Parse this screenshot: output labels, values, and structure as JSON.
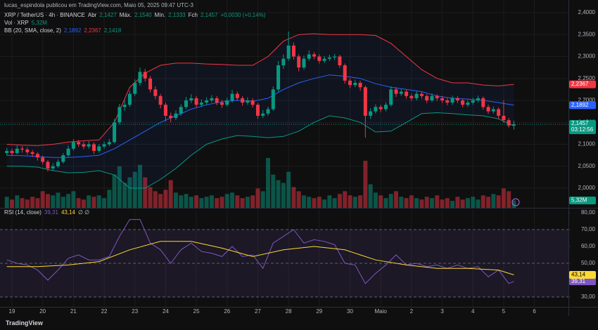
{
  "header": {
    "publisher": "lucas_espindola publicou em TradingView.com, Maio 05, 2025 09:47 UTC-3"
  },
  "footer": {
    "brand": "TradingView"
  },
  "chart_data": [
    {
      "type": "candlestick",
      "title": "XRP / TetherUS · 4h · BINANCE",
      "info": [
        {
          "label": "Abr",
          "value": "2,1427"
        },
        {
          "label": "Máx.",
          "value": "2,1540"
        },
        {
          "label": "Mín.",
          "value": "2,1333"
        },
        {
          "label": "Fch",
          "value": "2,1457"
        }
      ],
      "change": "+0,0030 (+0,14%)",
      "up_color": "#089981",
      "down_color": "#f23645",
      "last_label": "2,1457",
      "countdown": "03:12:56",
      "xlim": [
        -1.335,
        109.65
      ],
      "xticks": [
        {
          "value": 1,
          "label": "19"
        },
        {
          "value": 7,
          "label": "20"
        },
        {
          "value": 13,
          "label": "21"
        },
        {
          "value": 19,
          "label": "22"
        },
        {
          "value": 25,
          "label": "23"
        },
        {
          "value": 31,
          "label": "24"
        },
        {
          "value": 37,
          "label": "25"
        },
        {
          "value": 43,
          "label": "26"
        },
        {
          "value": 49,
          "label": "27"
        },
        {
          "value": 55,
          "label": "28"
        },
        {
          "value": 61,
          "label": "29"
        },
        {
          "value": 67,
          "label": "30"
        },
        {
          "value": 73,
          "label": "Maio"
        },
        {
          "value": 79,
          "label": "2"
        },
        {
          "value": 85,
          "label": "3"
        },
        {
          "value": 91,
          "label": "4"
        },
        {
          "value": 97,
          "label": "5"
        },
        {
          "value": 103,
          "label": "6"
        }
      ],
      "ylim": [
        1.9552,
        2.4288
      ],
      "yticks": [
        {
          "value": 2.0,
          "label": "2,0000"
        },
        {
          "value": 2.05,
          "label": "2,0500"
        },
        {
          "value": 2.1,
          "label": "2,1000"
        },
        {
          "value": 2.15,
          "label": "2,1500"
        },
        {
          "value": 2.2,
          "label": "2,2000"
        },
        {
          "value": 2.25,
          "label": "2,2500"
        },
        {
          "value": 2.3,
          "label": "2,3000"
        },
        {
          "value": 2.35,
          "label": "2,3500"
        },
        {
          "value": 2.4,
          "label": "2,4000"
        }
      ],
      "grid": true,
      "open": [
        2.08,
        2.085,
        2.08,
        2.09,
        2.088,
        2.082,
        2.078,
        2.07,
        2.06,
        2.045,
        2.05,
        2.06,
        2.075,
        2.09,
        2.105,
        2.1,
        2.095,
        2.1,
        2.085,
        2.095,
        2.1,
        2.105,
        2.15,
        2.185,
        2.19,
        2.215,
        2.24,
        2.265,
        2.25,
        2.225,
        2.21,
        2.19,
        2.165,
        2.16,
        2.17,
        2.185,
        2.2,
        2.205,
        2.19,
        2.195,
        2.2,
        2.205,
        2.195,
        2.19,
        2.2,
        2.215,
        2.205,
        2.195,
        2.2,
        2.19,
        2.165,
        2.17,
        2.18,
        2.225,
        2.28,
        2.295,
        2.325,
        2.3,
        2.275,
        2.295,
        2.305,
        2.3,
        2.29,
        2.295,
        2.298,
        2.3,
        2.28,
        2.245,
        2.235,
        2.24,
        2.23,
        2.165,
        2.175,
        2.185,
        2.18,
        2.19,
        2.225,
        2.215,
        2.22,
        2.21,
        2.205,
        2.215,
        2.21,
        2.2,
        2.21,
        2.205,
        2.2,
        2.195,
        2.205,
        2.2,
        2.19,
        2.195,
        2.2,
        2.205,
        2.185,
        2.175,
        2.18,
        2.165,
        2.155,
        2.1427
      ],
      "high": [
        2.092,
        2.09,
        2.097,
        2.096,
        2.093,
        2.087,
        2.082,
        2.074,
        2.064,
        2.057,
        2.066,
        2.08,
        2.097,
        2.112,
        2.11,
        2.106,
        2.107,
        2.104,
        2.1,
        2.106,
        2.112,
        2.158,
        2.192,
        2.2,
        2.222,
        2.248,
        2.275,
        2.272,
        2.256,
        2.232,
        2.215,
        2.195,
        2.172,
        2.177,
        2.191,
        2.208,
        2.214,
        2.21,
        2.202,
        2.207,
        2.212,
        2.21,
        2.201,
        2.206,
        2.224,
        2.22,
        2.21,
        2.207,
        2.205,
        2.194,
        2.178,
        2.186,
        2.232,
        2.29,
        2.305,
        2.357,
        2.332,
        2.305,
        2.302,
        2.314,
        2.31,
        2.305,
        2.301,
        2.304,
        2.306,
        2.304,
        2.284,
        2.25,
        2.247,
        2.245,
        2.234,
        2.182,
        2.191,
        2.19,
        2.196,
        2.232,
        2.23,
        2.226,
        2.224,
        2.215,
        2.221,
        2.219,
        2.214,
        2.216,
        2.214,
        2.21,
        2.205,
        2.211,
        2.21,
        2.204,
        2.201,
        2.206,
        2.211,
        2.209,
        2.19,
        2.186,
        2.184,
        2.2,
        2.16,
        2.154
      ],
      "low": [
        2.074,
        2.073,
        2.077,
        2.081,
        2.076,
        2.071,
        2.063,
        2.054,
        2.038,
        2.04,
        2.046,
        2.056,
        2.071,
        2.086,
        2.094,
        2.089,
        2.09,
        2.078,
        2.081,
        2.09,
        2.096,
        2.102,
        2.145,
        2.176,
        2.185,
        2.21,
        2.234,
        2.243,
        2.218,
        2.203,
        2.182,
        2.152,
        2.15,
        2.155,
        2.165,
        2.18,
        2.194,
        2.184,
        2.185,
        2.189,
        2.195,
        2.189,
        2.183,
        2.186,
        2.195,
        2.199,
        2.188,
        2.19,
        2.184,
        2.158,
        2.16,
        2.165,
        2.176,
        2.22,
        2.272,
        2.29,
        2.293,
        2.266,
        2.27,
        2.29,
        2.294,
        2.284,
        2.285,
        2.29,
        2.292,
        2.274,
        2.238,
        2.228,
        2.23,
        2.222,
        2.115,
        2.158,
        2.17,
        2.173,
        2.175,
        2.186,
        2.208,
        2.21,
        2.204,
        2.199,
        2.2,
        2.204,
        2.194,
        2.196,
        2.199,
        2.194,
        2.189,
        2.19,
        2.194,
        2.184,
        2.185,
        2.19,
        2.195,
        2.179,
        2.169,
        2.17,
        2.158,
        2.149,
        2.138,
        2.1333
      ],
      "close": [
        2.085,
        2.08,
        2.09,
        2.088,
        2.082,
        2.078,
        2.07,
        2.06,
        2.045,
        2.05,
        2.06,
        2.075,
        2.09,
        2.105,
        2.1,
        2.095,
        2.1,
        2.085,
        2.095,
        2.1,
        2.105,
        2.15,
        2.185,
        2.19,
        2.215,
        2.24,
        2.265,
        2.25,
        2.225,
        2.21,
        2.19,
        2.165,
        2.16,
        2.17,
        2.185,
        2.2,
        2.205,
        2.19,
        2.195,
        2.2,
        2.205,
        2.195,
        2.19,
        2.2,
        2.215,
        2.205,
        2.195,
        2.2,
        2.19,
        2.165,
        2.17,
        2.18,
        2.225,
        2.28,
        2.295,
        2.325,
        2.3,
        2.275,
        2.295,
        2.305,
        2.3,
        2.29,
        2.295,
        2.298,
        2.3,
        2.28,
        2.245,
        2.235,
        2.24,
        2.23,
        2.165,
        2.175,
        2.185,
        2.18,
        2.19,
        2.225,
        2.215,
        2.22,
        2.21,
        2.205,
        2.215,
        2.21,
        2.2,
        2.21,
        2.205,
        2.2,
        2.195,
        2.205,
        2.2,
        2.19,
        2.195,
        2.2,
        2.205,
        2.185,
        2.175,
        2.18,
        2.165,
        2.155,
        2.1427,
        2.1457
      ],
      "volume": {
        "name": "Vol · XRP",
        "value_label": "5,32M",
        "vlim": [
          0,
          150
        ],
        "up_color": "rgba(8,153,129,0.5)",
        "down_color": "rgba(242,54,69,0.5)",
        "values": [
          8,
          6,
          9,
          7,
          6,
          8,
          7,
          12,
          10,
          9,
          11,
          8,
          10,
          12,
          7,
          6,
          9,
          8,
          9,
          7,
          13,
          24,
          30,
          18,
          22,
          26,
          31,
          22,
          15,
          12,
          10,
          13,
          20,
          11,
          9,
          10,
          8,
          9,
          7,
          8,
          9,
          7,
          8,
          10,
          11,
          9,
          7,
          8,
          9,
          14,
          12,
          36,
          24,
          20,
          18,
          26,
          15,
          12,
          9,
          8,
          7,
          8,
          6,
          9,
          7,
          10,
          12,
          9,
          8,
          9,
          34,
          17,
          11,
          9,
          7,
          10,
          12,
          8,
          7,
          9,
          7,
          6,
          8,
          7,
          9,
          6,
          7,
          5,
          8,
          6,
          7,
          8,
          6,
          9,
          8,
          10,
          9,
          14,
          12,
          5.32
        ]
      },
      "indicator": {
        "name": "BB (20, SMA, close, 2)",
        "fill": "rgba(41,98,255,0.07)",
        "x": [
          0,
          3,
          6,
          9,
          12,
          15,
          18,
          21,
          24,
          27,
          30,
          33,
          36,
          39,
          42,
          45,
          48,
          51,
          54,
          57,
          60,
          63,
          66,
          69,
          72,
          75,
          78,
          81,
          84,
          87,
          90,
          93,
          96,
          99
        ],
        "series": [
          {
            "color": "#2962ff",
            "value_label": "2,1892",
            "values": [
              2.075,
              2.074,
              2.072,
              2.07,
              2.07,
              2.072,
              2.075,
              2.09,
              2.11,
              2.13,
              2.15,
              2.165,
              2.18,
              2.19,
              2.197,
              2.2,
              2.198,
              2.205,
              2.225,
              2.24,
              2.25,
              2.258,
              2.255,
              2.25,
              2.238,
              2.23,
              2.225,
              2.22,
              2.21,
              2.205,
              2.203,
              2.2,
              2.195,
              2.1892
            ]
          },
          {
            "color": "#f23645",
            "value_label": "2,2367",
            "values": [
              2.1,
              2.098,
              2.097,
              2.1,
              2.105,
              2.108,
              2.11,
              2.15,
              2.23,
              2.262,
              2.28,
              2.285,
              2.285,
              2.283,
              2.282,
              2.28,
              2.28,
              2.3,
              2.335,
              2.35,
              2.352,
              2.35,
              2.35,
              2.35,
              2.348,
              2.33,
              2.3,
              2.27,
              2.25,
              2.24,
              2.24,
              2.235,
              2.233,
              2.2367
            ]
          },
          {
            "color": "#089981",
            "value_label": "2,1418",
            "values": [
              2.05,
              2.05,
              2.048,
              2.04,
              2.035,
              2.036,
              2.04,
              2.03,
              2.0,
              2.0,
              2.02,
              2.045,
              2.075,
              2.1,
              2.112,
              2.12,
              2.118,
              2.115,
              2.118,
              2.13,
              2.15,
              2.165,
              2.16,
              2.15,
              2.128,
              2.13,
              2.15,
              2.17,
              2.172,
              2.17,
              2.167,
              2.165,
              2.158,
              2.1418
            ]
          }
        ]
      }
    },
    {
      "type": "line",
      "title": "RSI (14, close)",
      "extra": "∅ ∅",
      "xlim": [
        -1.335,
        109.65
      ],
      "ylim": [
        24.17,
        82.5
      ],
      "yticks": [
        {
          "value": 30,
          "label": "30,00"
        },
        {
          "value": 40,
          "label": "40,00"
        },
        {
          "value": 50,
          "label": "50,00"
        },
        {
          "value": 60,
          "label": "60,00"
        },
        {
          "value": 70,
          "label": "70,00"
        },
        {
          "value": 80,
          "label": "80,00"
        }
      ],
      "bands": [
        30,
        70
      ],
      "band_color": "rgba(126,87,194,0.12)",
      "levels": [
        70,
        50,
        30
      ],
      "series": [
        {
          "color": "#7e57c2",
          "value_label": "39,31",
          "x": [
            0,
            2,
            4,
            6,
            8,
            10,
            12,
            14,
            16,
            18,
            20,
            22,
            24,
            26,
            28,
            30,
            32,
            34,
            36,
            38,
            40,
            42,
            44,
            46,
            48,
            50,
            52,
            54,
            56,
            58,
            60,
            62,
            64,
            66,
            68,
            70,
            72,
            74,
            76,
            78,
            80,
            82,
            84,
            86,
            88,
            90,
            92,
            94,
            96,
            98,
            99
          ],
          "values": [
            52,
            50,
            49,
            46,
            40,
            46,
            53,
            55,
            52,
            52,
            54,
            66,
            76,
            76,
            62,
            58,
            50,
            58,
            62,
            57,
            56,
            54,
            60,
            54,
            55,
            47,
            62,
            66,
            70,
            62,
            64,
            63,
            61,
            50,
            49,
            38,
            44,
            49,
            55,
            49,
            50,
            48,
            49,
            47,
            49,
            47,
            48,
            42,
            46,
            38,
            39.31
          ]
        },
        {
          "color": "#fdd835",
          "value_label": "43,14",
          "x": [
            0,
            6,
            12,
            18,
            24,
            30,
            36,
            42,
            48,
            54,
            60,
            66,
            72,
            78,
            84,
            90,
            96,
            99
          ],
          "values": [
            48,
            48,
            49,
            51,
            58,
            63,
            63,
            59,
            54,
            58,
            60,
            58,
            52,
            49,
            47,
            47,
            46,
            43.14
          ]
        }
      ]
    }
  ]
}
